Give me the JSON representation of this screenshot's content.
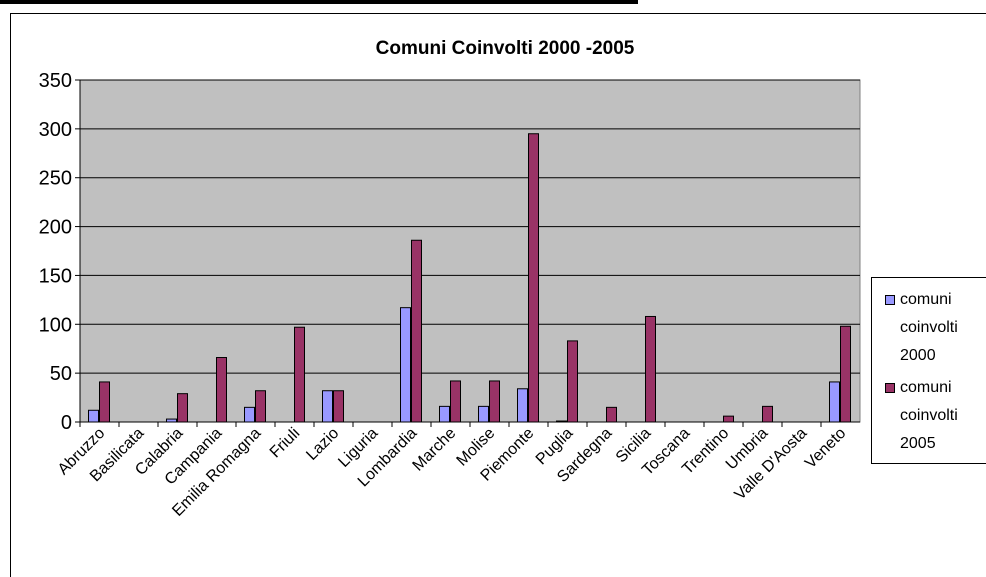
{
  "chart_data": {
    "type": "bar",
    "title": "Comuni Coinvolti 2000 -2005",
    "categories": [
      "Abruzzo",
      "Basilicata",
      "Calabria",
      "Campania",
      "Emilia Romagna",
      "Friuli",
      "Lazio",
      "Liguria",
      "Lombardia",
      "Marche",
      "Molise",
      "Piemonte",
      "Puglia",
      "Sardegna",
      "Sicilia",
      "Toscana",
      "Trentino",
      "Umbria",
      "Valle D'Aosta",
      "Veneto"
    ],
    "series": [
      {
        "name": "comuni coinvolti 2000",
        "color": "#9999ff",
        "values": [
          12,
          0,
          3,
          0,
          15,
          0,
          32,
          0,
          117,
          16,
          16,
          34,
          1,
          0,
          0,
          0,
          0,
          0,
          0,
          41
        ]
      },
      {
        "name": "comuni coinvolti 2005",
        "color": "#993366",
        "values": [
          41,
          0,
          29,
          66,
          32,
          97,
          32,
          0,
          186,
          42,
          42,
          295,
          83,
          15,
          108,
          0,
          6,
          16,
          0,
          98
        ]
      }
    ],
    "yticks": [
      "0",
      "50",
      "100",
      "150",
      "200",
      "250",
      "300",
      "350"
    ],
    "ylim": [
      0,
      350
    ],
    "grid": true,
    "plot_background": "#c0c0c0",
    "legend_position": "right"
  }
}
